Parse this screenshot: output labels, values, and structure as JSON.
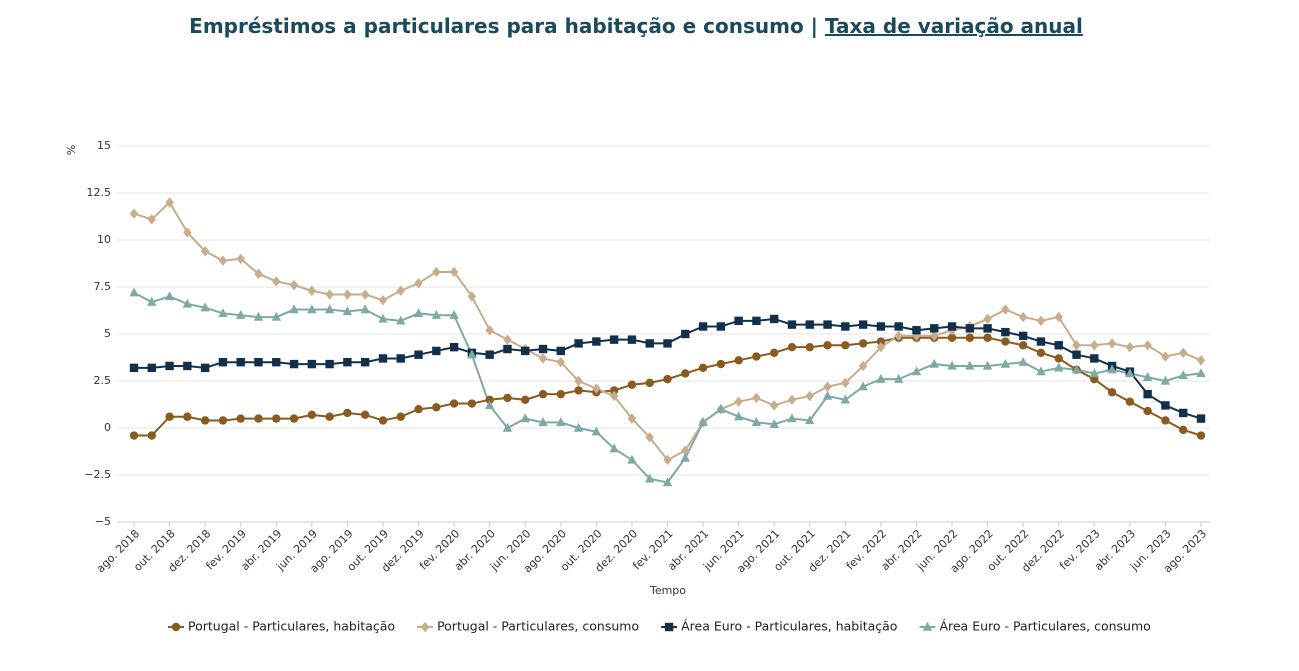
{
  "chart_data": {
    "type": "line",
    "title": "Empréstimos a particulares para habitação e consumo",
    "title_separator": "|",
    "title_link": "Taxa de variação anual",
    "y_label": "%",
    "x_label": "Tempo",
    "categories": [
      "ago. 2018",
      null,
      "out. 2018",
      null,
      "dez. 2018",
      null,
      "fev. 2019",
      null,
      "abr. 2019",
      null,
      "jun. 2019",
      null,
      "ago. 2019",
      null,
      "out. 2019",
      null,
      "dez. 2019",
      null,
      "fev. 2020",
      null,
      "abr. 2020",
      null,
      "jun. 2020",
      null,
      "ago. 2020",
      null,
      "out. 2020",
      null,
      "dez. 2020",
      null,
      "fev. 2021",
      null,
      "abr. 2021",
      null,
      "jun. 2021",
      null,
      "ago. 2021",
      null,
      "out. 2021",
      null,
      "dez. 2021",
      null,
      "fev. 2022",
      null,
      "abr. 2022",
      null,
      "jun. 2022",
      null,
      "ago. 2022",
      null,
      "out. 2022",
      null,
      "dez. 2022",
      null,
      "fev. 2023",
      null,
      "abr. 2023",
      null,
      "jun. 2023",
      null,
      "ago. 2023"
    ],
    "ylim": [
      -5,
      15
    ],
    "yticks": [
      {
        "value": -5,
        "label": "−5"
      },
      {
        "value": -2.5,
        "label": "−2.5"
      },
      0,
      2.5,
      5,
      7.5,
      10,
      12.5,
      15
    ],
    "grid": true,
    "legend": "bottom",
    "series": [
      {
        "name": "Portugal - Particulares, habitação",
        "color": "#8b5a1e",
        "marker": "circle",
        "values": [
          -0.4,
          -0.4,
          0.6,
          0.6,
          0.4,
          0.4,
          0.5,
          0.5,
          0.5,
          0.5,
          0.7,
          0.6,
          0.8,
          0.7,
          0.4,
          0.6,
          1.0,
          1.1,
          1.3,
          1.3,
          1.5,
          1.6,
          1.5,
          1.8,
          1.8,
          2.0,
          1.9,
          2.0,
          2.3,
          2.4,
          2.6,
          2.9,
          3.2,
          3.4,
          3.6,
          3.8,
          4.0,
          4.3,
          4.3,
          4.4,
          4.4,
          4.5,
          4.6,
          4.8,
          4.8,
          4.8,
          4.8,
          4.8,
          4.8,
          4.6,
          4.4,
          4.0,
          3.7,
          3.1,
          2.6,
          1.9,
          1.4,
          0.9,
          0.4,
          -0.1,
          -0.4
        ]
      },
      {
        "name": "Portugal - Particulares, consumo",
        "color": "#c8ad8c",
        "marker": "diamond",
        "values": [
          11.4,
          11.1,
          12.0,
          10.4,
          9.4,
          8.9,
          9.0,
          8.2,
          7.8,
          7.6,
          7.3,
          7.1,
          7.1,
          7.1,
          6.8,
          7.3,
          7.7,
          8.3,
          8.3,
          7.0,
          5.2,
          4.7,
          4.2,
          3.7,
          3.5,
          2.5,
          2.1,
          1.7,
          0.5,
          -0.5,
          -1.7,
          -1.2,
          0.3,
          1.0,
          1.4,
          1.6,
          1.2,
          1.5,
          1.7,
          2.2,
          2.4,
          3.3,
          4.3,
          4.9,
          4.9,
          4.9,
          5.2,
          5.4,
          5.8,
          6.3,
          5.9,
          5.7,
          5.9,
          4.4,
          4.4,
          4.5,
          4.3,
          4.4,
          3.8,
          4.0,
          3.6
        ]
      },
      {
        "name": "Área Euro - Particulares, habitação",
        "color": "#13304a",
        "marker": "square",
        "values": [
          3.2,
          3.2,
          3.3,
          3.3,
          3.2,
          3.5,
          3.5,
          3.5,
          3.5,
          3.4,
          3.4,
          3.4,
          3.5,
          3.5,
          3.7,
          3.7,
          3.9,
          4.1,
          4.3,
          4.0,
          3.9,
          4.2,
          4.1,
          4.2,
          4.1,
          4.5,
          4.6,
          4.7,
          4.7,
          4.5,
          4.5,
          5.0,
          5.4,
          5.4,
          5.7,
          5.7,
          5.8,
          5.5,
          5.5,
          5.5,
          5.4,
          5.5,
          5.4,
          5.4,
          5.2,
          5.3,
          5.4,
          5.3,
          5.3,
          5.1,
          4.9,
          4.6,
          4.4,
          3.9,
          3.7,
          3.3,
          3.0,
          1.8,
          1.2,
          0.8,
          0.5
        ]
      },
      {
        "name": "Área Euro - Particulares, consumo",
        "color": "#7fa9a6",
        "marker": "triangle",
        "values": [
          7.2,
          6.7,
          7.0,
          6.6,
          6.4,
          6.1,
          6.0,
          5.9,
          5.9,
          6.3,
          6.3,
          6.3,
          6.2,
          6.3,
          5.8,
          5.7,
          6.1,
          6.0,
          6.0,
          3.9,
          1.2,
          0.0,
          0.5,
          0.3,
          0.3,
          0.0,
          -0.2,
          -1.1,
          -1.7,
          -2.7,
          -2.9,
          -1.6,
          0.3,
          1.0,
          0.6,
          0.3,
          0.2,
          0.5,
          0.4,
          1.7,
          1.5,
          2.2,
          2.6,
          2.6,
          3.0,
          3.4,
          3.3,
          3.3,
          3.3,
          3.4,
          3.5,
          3.0,
          3.2,
          3.1,
          2.9,
          3.1,
          2.9,
          2.7,
          2.5,
          2.8,
          2.9
        ]
      }
    ]
  }
}
